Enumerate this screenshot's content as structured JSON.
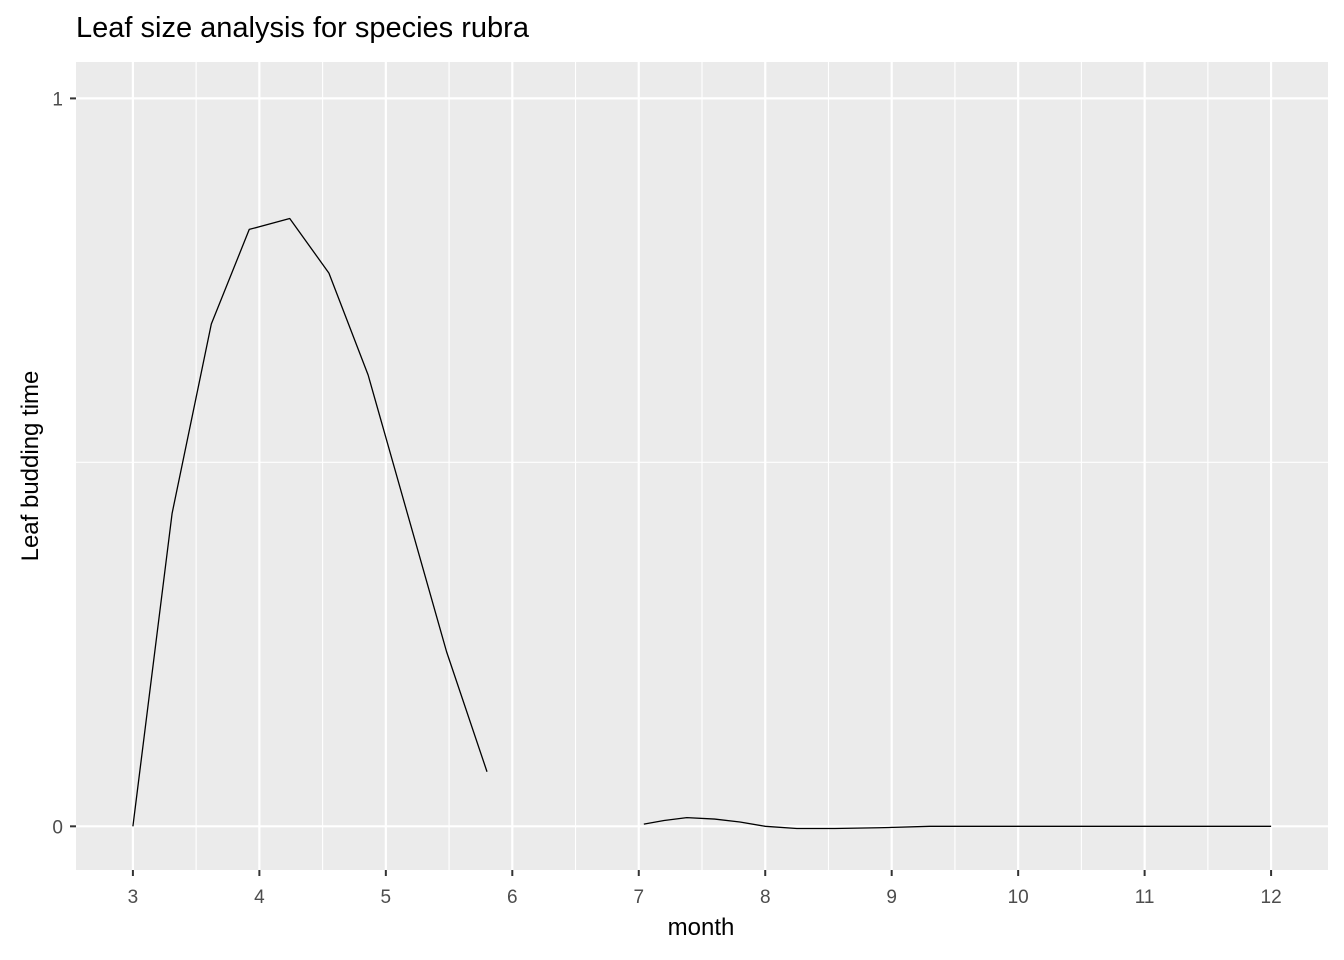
{
  "chart_data": {
    "type": "line",
    "title": "Leaf size analysis for species rubra",
    "xlabel": "month",
    "ylabel": "Leaf budding time",
    "xlim": [
      2.55,
      12.45
    ],
    "ylim": [
      -0.06,
      1.05
    ],
    "x_ticks": [
      3,
      4,
      5,
      6,
      7,
      8,
      9,
      10,
      11,
      12
    ],
    "y_ticks": [
      0,
      1
    ],
    "grid": true,
    "legend": "none",
    "colors": {
      "panel_background": "#ebebeb",
      "grid_line": "#ffffff",
      "line": "#000000",
      "tick_text": "#4d4d4d"
    },
    "series": [
      {
        "segment": 1,
        "x": [
          3.0,
          3.31,
          3.62,
          3.92,
          4.24,
          4.55,
          4.86,
          5.17,
          5.48,
          5.8
        ],
        "y": [
          0.0,
          0.43,
          0.69,
          0.82,
          0.835,
          0.76,
          0.62,
          0.43,
          0.24,
          0.075
        ]
      },
      {
        "segment": 2,
        "x": [
          7.04,
          7.2,
          7.38,
          7.6,
          7.8,
          8.0,
          8.25,
          8.55,
          8.9,
          9.3,
          10.0,
          11.0,
          12.0
        ],
        "y": [
          0.003,
          0.008,
          0.012,
          0.01,
          0.006,
          0.0,
          -0.003,
          -0.003,
          -0.002,
          0.0,
          0.0,
          0.0,
          0.0
        ]
      }
    ]
  }
}
